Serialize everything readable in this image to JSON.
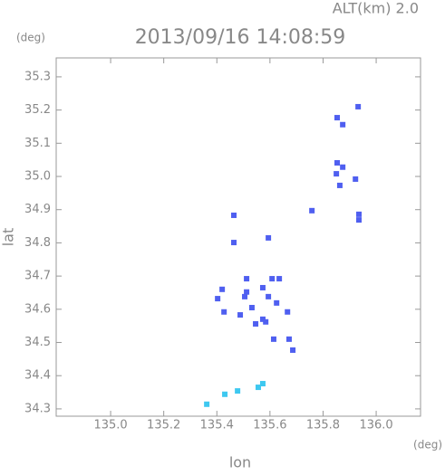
{
  "header": {
    "altitude": "ALT(km) 2.0",
    "y_unit": "(deg)",
    "x_unit": "(deg)"
  },
  "chart_data": {
    "type": "scatter",
    "title": "2013/09/16 14:08:59",
    "x_label": "lon",
    "y_label": "lat",
    "xlim": [
      134.795,
      136.167
    ],
    "ylim": [
      34.278,
      35.357
    ],
    "xticks": [
      {
        "value": 135,
        "label": "135.0"
      },
      135.2,
      135.4,
      135.6,
      135.8,
      {
        "value": 136,
        "label": "136.0"
      }
    ],
    "yticks": [
      34.3,
      34.4,
      34.5,
      34.6,
      34.7,
      34.8,
      34.9,
      {
        "value": 35,
        "label": "35.0"
      },
      35.1,
      35.2,
      35.3
    ],
    "series": [
      {
        "color": "#4f5ff0",
        "x": [
          135.853,
          135.874,
          135.932,
          135.853,
          135.874,
          135.85,
          135.922,
          135.863,
          135.758,
          135.935,
          135.935,
          135.464,
          135.464,
          135.594,
          135.608,
          135.512,
          135.635,
          135.403,
          135.42,
          135.512,
          135.573,
          135.505,
          135.594,
          135.532,
          135.625,
          135.573,
          135.546,
          135.584,
          135.488,
          135.614,
          135.672,
          135.686,
          135.666,
          135.427
        ],
        "y": [
          35.177,
          35.156,
          35.21,
          35.041,
          35.028,
          35.008,
          34.992,
          34.973,
          34.897,
          34.886,
          34.869,
          34.883,
          34.801,
          34.815,
          34.692,
          34.692,
          34.692,
          34.632,
          34.66,
          34.652,
          34.665,
          34.638,
          34.638,
          34.605,
          34.619,
          34.57,
          34.556,
          34.562,
          34.583,
          34.51,
          34.51,
          34.477,
          34.592,
          34.592
        ]
      },
      {
        "color": "#3ec8f0",
        "x": [
          135.362,
          135.43,
          135.478,
          135.556,
          135.573
        ],
        "y": [
          34.314,
          34.344,
          34.354,
          34.365,
          34.376
        ]
      }
    ]
  }
}
